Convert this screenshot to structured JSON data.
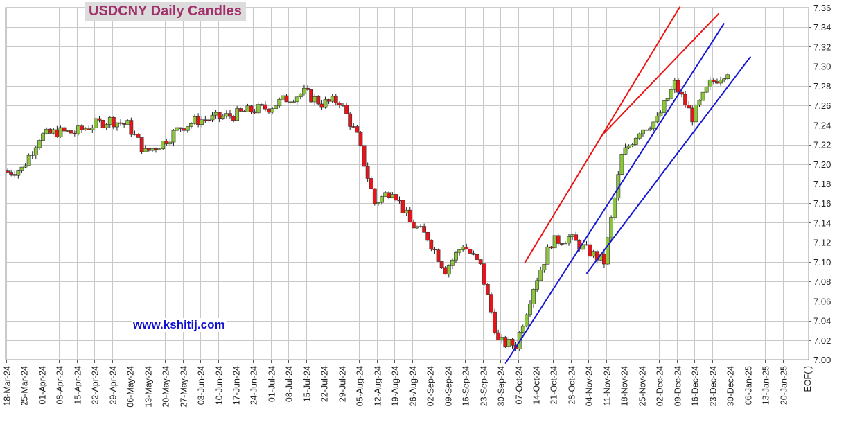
{
  "title": "USDCNY Daily Candles",
  "website": "www.kshitij.com",
  "colors": {
    "up": "#8cc63f",
    "down": "#e8141a",
    "grid": "#c8c8c8",
    "trend_red": "#ee1111",
    "trend_blue": "#1515d5",
    "title": "#a0306a"
  },
  "chart_data": {
    "type": "candlestick",
    "title": "USDCNY Daily Candles",
    "ylim": [
      7.0,
      7.36
    ],
    "y_ticks": [
      "7.00",
      "7.02",
      "7.04",
      "7.06",
      "7.08",
      "7.10",
      "7.12",
      "7.14",
      "7.16",
      "7.18",
      "7.20",
      "7.22",
      "7.24",
      "7.26",
      "7.28",
      "7.30",
      "7.32",
      "7.34",
      "7.36"
    ],
    "x_ticks": [
      "18-Mar-24",
      "25-Mar-24",
      "01-Apr-24",
      "08-Apr-24",
      "15-Apr-24",
      "22-Apr-24",
      "29-Apr-24",
      "06-May-24",
      "13-May-24",
      "20-May-24",
      "27-May-24",
      "03-Jun-24",
      "10-Jun-24",
      "17-Jun-24",
      "24-Jun-24",
      "01-Jul-24",
      "08-Jul-24",
      "15-Jul-24",
      "22-Jul-24",
      "29-Jul-24",
      "05-Aug-24",
      "12-Aug-24",
      "19-Aug-24",
      "26-Aug-24",
      "02-Sep-24",
      "09-Sep-24",
      "16-Sep-24",
      "23-Sep-24",
      "30-Sep-24",
      "07-Oct-24",
      "14-Oct-24",
      "21-Oct-24",
      "28-Oct-24",
      "04-Nov-24",
      "11-Nov-24",
      "18-Nov-24",
      "25-Nov-24",
      "02-Dec-24",
      "09-Dec-24",
      "16-Dec-24",
      "23-Dec-24",
      "30-Dec-24",
      "06-Jan-25",
      "13-Jan-25",
      "20-Jan-25"
    ],
    "x_end_label": "EOF( )",
    "weekly_closes": [
      7.195,
      7.228,
      7.233,
      7.232,
      7.24,
      7.245,
      7.24,
      7.212,
      7.222,
      7.238,
      7.245,
      7.247,
      7.25,
      7.255,
      7.258,
      7.267,
      7.273,
      7.262,
      7.265,
      7.228,
      7.16,
      7.175,
      7.14,
      7.125,
      7.092,
      7.118,
      7.095,
      7.018,
      7.015,
      7.075,
      7.12,
      7.125,
      7.112,
      7.1,
      7.208,
      7.235,
      7.245,
      7.282,
      7.248,
      7.282,
      7.296
    ],
    "trendlines": [
      {
        "color": "red",
        "from": [
          29.4,
          7.099
        ],
        "to": [
          38.2,
          7.361
        ]
      },
      {
        "color": "red",
        "from": [
          33.7,
          7.228
        ],
        "to": [
          40.4,
          7.354
        ]
      },
      {
        "color": "blue",
        "from": [
          28.3,
          6.996
        ],
        "to": [
          40.7,
          7.344
        ]
      },
      {
        "color": "blue",
        "from": [
          32.9,
          7.088
        ],
        "to": [
          42.2,
          7.31
        ]
      }
    ]
  }
}
